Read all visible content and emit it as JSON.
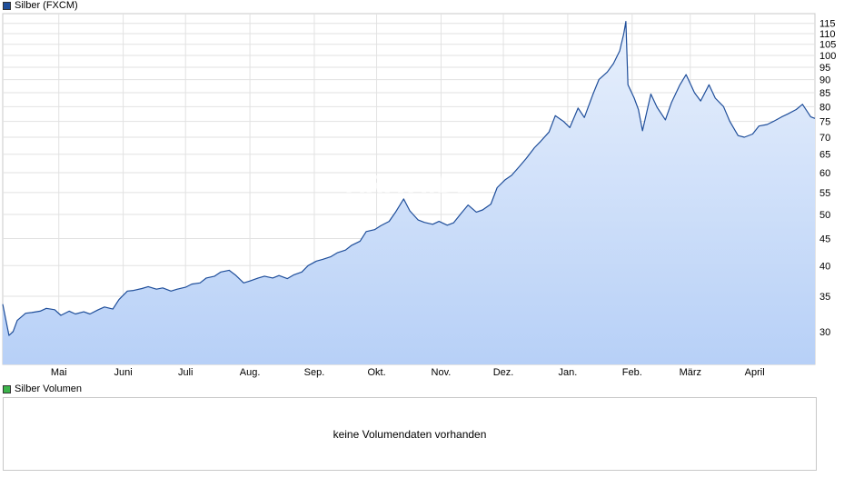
{
  "price_legend": {
    "label": "Silber (FXCM)",
    "color": "#1f4e9a"
  },
  "volume_legend": {
    "label": "Silber Volumen",
    "color": "#3cb44b"
  },
  "watermark": "ARIVA.DE",
  "volume_panel": {
    "message": "keine Volumendaten vorhanden"
  },
  "chart_data": {
    "type": "area",
    "scale": "log",
    "ylim": [
      26,
      120
    ],
    "ytick_labels": [
      "30",
      "35",
      "40",
      "45",
      "50",
      "55",
      "60",
      "65",
      "70",
      "75",
      "80",
      "85",
      "90",
      "95",
      "100",
      "105",
      "110",
      "115"
    ],
    "xtick_labels": [
      "Mai",
      "Juni",
      "Juli",
      "Aug.",
      "Sep.",
      "Okt.",
      "Nov.",
      "Dez.",
      "Jan.",
      "Feb.",
      "März",
      "April"
    ],
    "x_start": "2025-04-04",
    "x_end": "2026-04-30",
    "month_starts": [
      "2025-05-01",
      "2025-06-01",
      "2025-07-01",
      "2025-08-01",
      "2025-09-01",
      "2025-10-01",
      "2025-11-01",
      "2025-12-01",
      "2026-01-01",
      "2026-02-01",
      "2026-03-01",
      "2026-04-01"
    ],
    "line_color": "#1f4e9a",
    "fill_top": "#e8f0fc",
    "fill_bottom": "#b7d0f7",
    "grid": true,
    "x": [
      "2025-04-04",
      "2025-04-07",
      "2025-04-09",
      "2025-04-11",
      "2025-04-15",
      "2025-04-18",
      "2025-04-22",
      "2025-04-25",
      "2025-04-29",
      "2025-05-02",
      "2025-05-06",
      "2025-05-09",
      "2025-05-13",
      "2025-05-16",
      "2025-05-20",
      "2025-05-23",
      "2025-05-27",
      "2025-05-30",
      "2025-06-03",
      "2025-06-06",
      "2025-06-10",
      "2025-06-13",
      "2025-06-17",
      "2025-06-20",
      "2025-06-24",
      "2025-06-27",
      "2025-07-01",
      "2025-07-04",
      "2025-07-08",
      "2025-07-11",
      "2025-07-15",
      "2025-07-18",
      "2025-07-22",
      "2025-07-25",
      "2025-07-29",
      "2025-08-01",
      "2025-08-05",
      "2025-08-08",
      "2025-08-12",
      "2025-08-15",
      "2025-08-19",
      "2025-08-22",
      "2025-08-26",
      "2025-08-29",
      "2025-09-02",
      "2025-09-05",
      "2025-09-09",
      "2025-09-12",
      "2025-09-16",
      "2025-09-19",
      "2025-09-23",
      "2025-09-26",
      "2025-09-30",
      "2025-10-03",
      "2025-10-07",
      "2025-10-10",
      "2025-10-14",
      "2025-10-17",
      "2025-10-21",
      "2025-10-24",
      "2025-10-28",
      "2025-10-31",
      "2025-11-04",
      "2025-11-07",
      "2025-11-11",
      "2025-11-14",
      "2025-11-18",
      "2025-11-21",
      "2025-11-25",
      "2025-11-28",
      "2025-12-02",
      "2025-12-05",
      "2025-12-09",
      "2025-12-12",
      "2025-12-16",
      "2025-12-19",
      "2025-12-23",
      "2025-12-26",
      "2025-12-30",
      "2026-01-02",
      "2026-01-06",
      "2026-01-09",
      "2026-01-13",
      "2026-01-16",
      "2026-01-20",
      "2026-01-23",
      "2026-01-26",
      "2026-01-28",
      "2026-01-29",
      "2026-01-30",
      "2026-02-02",
      "2026-02-04",
      "2026-02-06",
      "2026-02-10",
      "2026-02-13",
      "2026-02-17",
      "2026-02-20",
      "2026-02-24",
      "2026-02-27",
      "2026-03-03",
      "2026-03-06",
      "2026-03-10",
      "2026-03-13",
      "2026-03-17",
      "2026-03-20",
      "2026-03-24",
      "2026-03-27",
      "2026-03-31",
      "2026-04-03",
      "2026-04-07",
      "2026-04-10",
      "2026-04-14",
      "2026-04-17",
      "2026-04-21",
      "2026-04-24",
      "2026-04-28",
      "2026-04-30"
    ],
    "values": [
      33.8,
      29.5,
      30.0,
      31.5,
      32.5,
      32.6,
      32.8,
      33.2,
      33.0,
      32.2,
      32.8,
      32.4,
      32.7,
      32.4,
      33.0,
      33.4,
      33.1,
      34.5,
      35.8,
      35.9,
      36.2,
      36.5,
      36.1,
      36.3,
      35.8,
      36.1,
      36.4,
      36.9,
      37.1,
      37.9,
      38.2,
      38.9,
      39.2,
      38.4,
      37.1,
      37.4,
      37.9,
      38.2,
      37.9,
      38.3,
      37.8,
      38.4,
      38.9,
      40.0,
      40.8,
      41.1,
      41.6,
      42.3,
      42.8,
      43.7,
      44.5,
      46.4,
      46.8,
      47.6,
      48.5,
      50.4,
      53.5,
      50.8,
      48.8,
      48.3,
      47.9,
      48.5,
      47.7,
      48.2,
      50.4,
      52.1,
      50.5,
      51.0,
      52.3,
      56.2,
      58.2,
      59.3,
      61.8,
      63.8,
      66.9,
      68.8,
      71.6,
      76.9,
      75.0,
      73.0,
      79.5,
      76.3,
      84.2,
      90.0,
      93.0,
      96.5,
      102.0,
      110.0,
      116.0,
      88.0,
      83.0,
      79.0,
      72.0,
      84.5,
      79.8,
      75.5,
      81.5,
      88.0,
      92.0,
      85.0,
      82.0,
      88.0,
      83.0,
      80.0,
      75.0,
      70.5,
      70.0,
      71.0,
      73.5,
      74.0,
      75.0,
      76.5,
      77.5,
      79.0,
      80.8,
      76.5,
      76.0
    ]
  }
}
